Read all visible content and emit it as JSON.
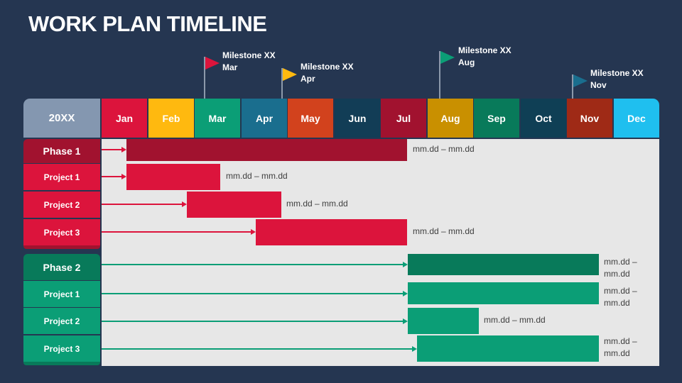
{
  "title": "WORK PLAN TIMELINE",
  "year": "20XX",
  "months": [
    {
      "label": "Jan",
      "color": "#dc143c"
    },
    {
      "label": "Feb",
      "color": "#ffb90f"
    },
    {
      "label": "Mar",
      "color": "#0b9e76"
    },
    {
      "label": "Apr",
      "color": "#1a6e8e"
    },
    {
      "label": "May",
      "color": "#d2421d"
    },
    {
      "label": "Jun",
      "color": "#123d56"
    },
    {
      "label": "Jul",
      "color": "#a1122f"
    },
    {
      "label": "Aug",
      "color": "#c99000"
    },
    {
      "label": "Sep",
      "color": "#087a5a"
    },
    {
      "label": "Oct",
      "color": "#0f3f55"
    },
    {
      "label": "Nov",
      "color": "#9f2a16"
    },
    {
      "label": "Dec",
      "color": "#1fbfef"
    }
  ],
  "milestones": [
    {
      "title": "Milestone XX",
      "month": "Mar",
      "color": "#dc143c"
    },
    {
      "title": "Milestone XX",
      "month": "Apr",
      "color": "#ffb90f"
    },
    {
      "title": "Milestone XX",
      "month": "Aug",
      "color": "#0b9e76"
    },
    {
      "title": "Milestone XX",
      "month": "Nov",
      "color": "#1a6e8e"
    }
  ],
  "groups": [
    {
      "phase": "Phase 1",
      "phase_color": "#a1122f",
      "item_color": "#dc143c",
      "rows": [
        {
          "label": "Phase 1",
          "dates": "mm.dd – mm.dd"
        },
        {
          "label": "Project 1",
          "dates": "mm.dd – mm.dd"
        },
        {
          "label": "Project 2",
          "dates": "mm.dd – mm.dd"
        },
        {
          "label": "Project 3",
          "dates": "mm.dd – mm.dd"
        }
      ]
    },
    {
      "phase": "Phase 2",
      "phase_color": "#087a5a",
      "item_color": "#0b9e76",
      "rows": [
        {
          "label": "Phase 2",
          "dates_1": "mm.dd –",
          "dates_2": "mm.dd"
        },
        {
          "label": "Project 1",
          "dates_1": "mm.dd –",
          "dates_2": "mm.dd"
        },
        {
          "label": "Project 2",
          "dates": "mm.dd – mm.dd"
        },
        {
          "label": "Project 3",
          "dates_1": "mm.dd –",
          "dates_2": "mm.dd"
        }
      ]
    }
  ]
}
